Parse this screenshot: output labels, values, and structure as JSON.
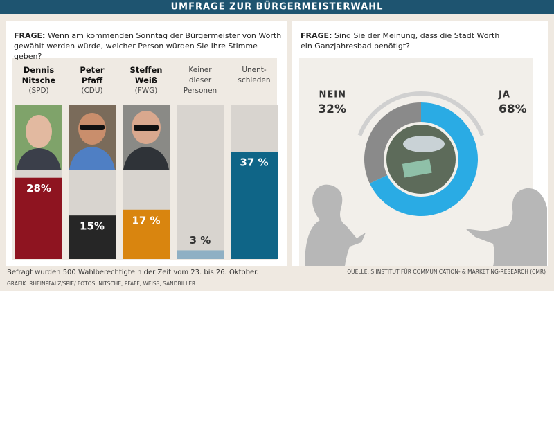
{
  "header": {
    "title": "UMFRAGE ZUR BÜRGERMEISTERWAHL"
  },
  "left": {
    "question_label": "FRAGE:",
    "question": "Wenn am kommenden Sonntag der Bürgermeister von Wörth gewählt werden würde, welcher Person würden Sie Ihre Stimme geben?"
  },
  "right": {
    "question_label": "FRAGE:",
    "question": "Sind Sie der Meinung, dass die Stadt Wörth ein Ganzjahresbad benötigt?"
  },
  "footer": {
    "note": "Befragt wurden 500 Wahlberechtigte n der Zeit vom 23. bis 26. Oktober.",
    "credits": "GRAFIK: RHEINPFALZ/SPIE/ FOTOS:  NITSCHE, PFAFF, WEISS, SANDBILLER",
    "source": "QUELLE: S INSTITUT FÜR COMMUNICATION- & MARKETING-RESEARCH (CMR)"
  },
  "chart_data": [
    {
      "type": "bar",
      "categories": [
        "Dennis Nitsche",
        "Peter Pfaff",
        "Steffen Weiß",
        "Keiner dieser Personen",
        "Unent-schieden"
      ],
      "parties": [
        "(SPD)",
        "(CDU)",
        "(FWG)",
        null,
        null
      ],
      "values": [
        28,
        15,
        17,
        3,
        37
      ],
      "value_labels": [
        "28%",
        "15%",
        "17 %",
        "3 %",
        "37 %"
      ],
      "colors": [
        "#8e1420",
        "#262626",
        "#d9850f",
        "#8fb0c4",
        "#0f6587"
      ],
      "ylim": [
        0,
        53
      ]
    },
    {
      "type": "pie",
      "categories": [
        "JA",
        "NEIN"
      ],
      "values": [
        68,
        32
      ],
      "value_labels": [
        "68%",
        "32%"
      ],
      "colors": [
        "#2aabe4",
        "#8a8a8a"
      ]
    }
  ]
}
